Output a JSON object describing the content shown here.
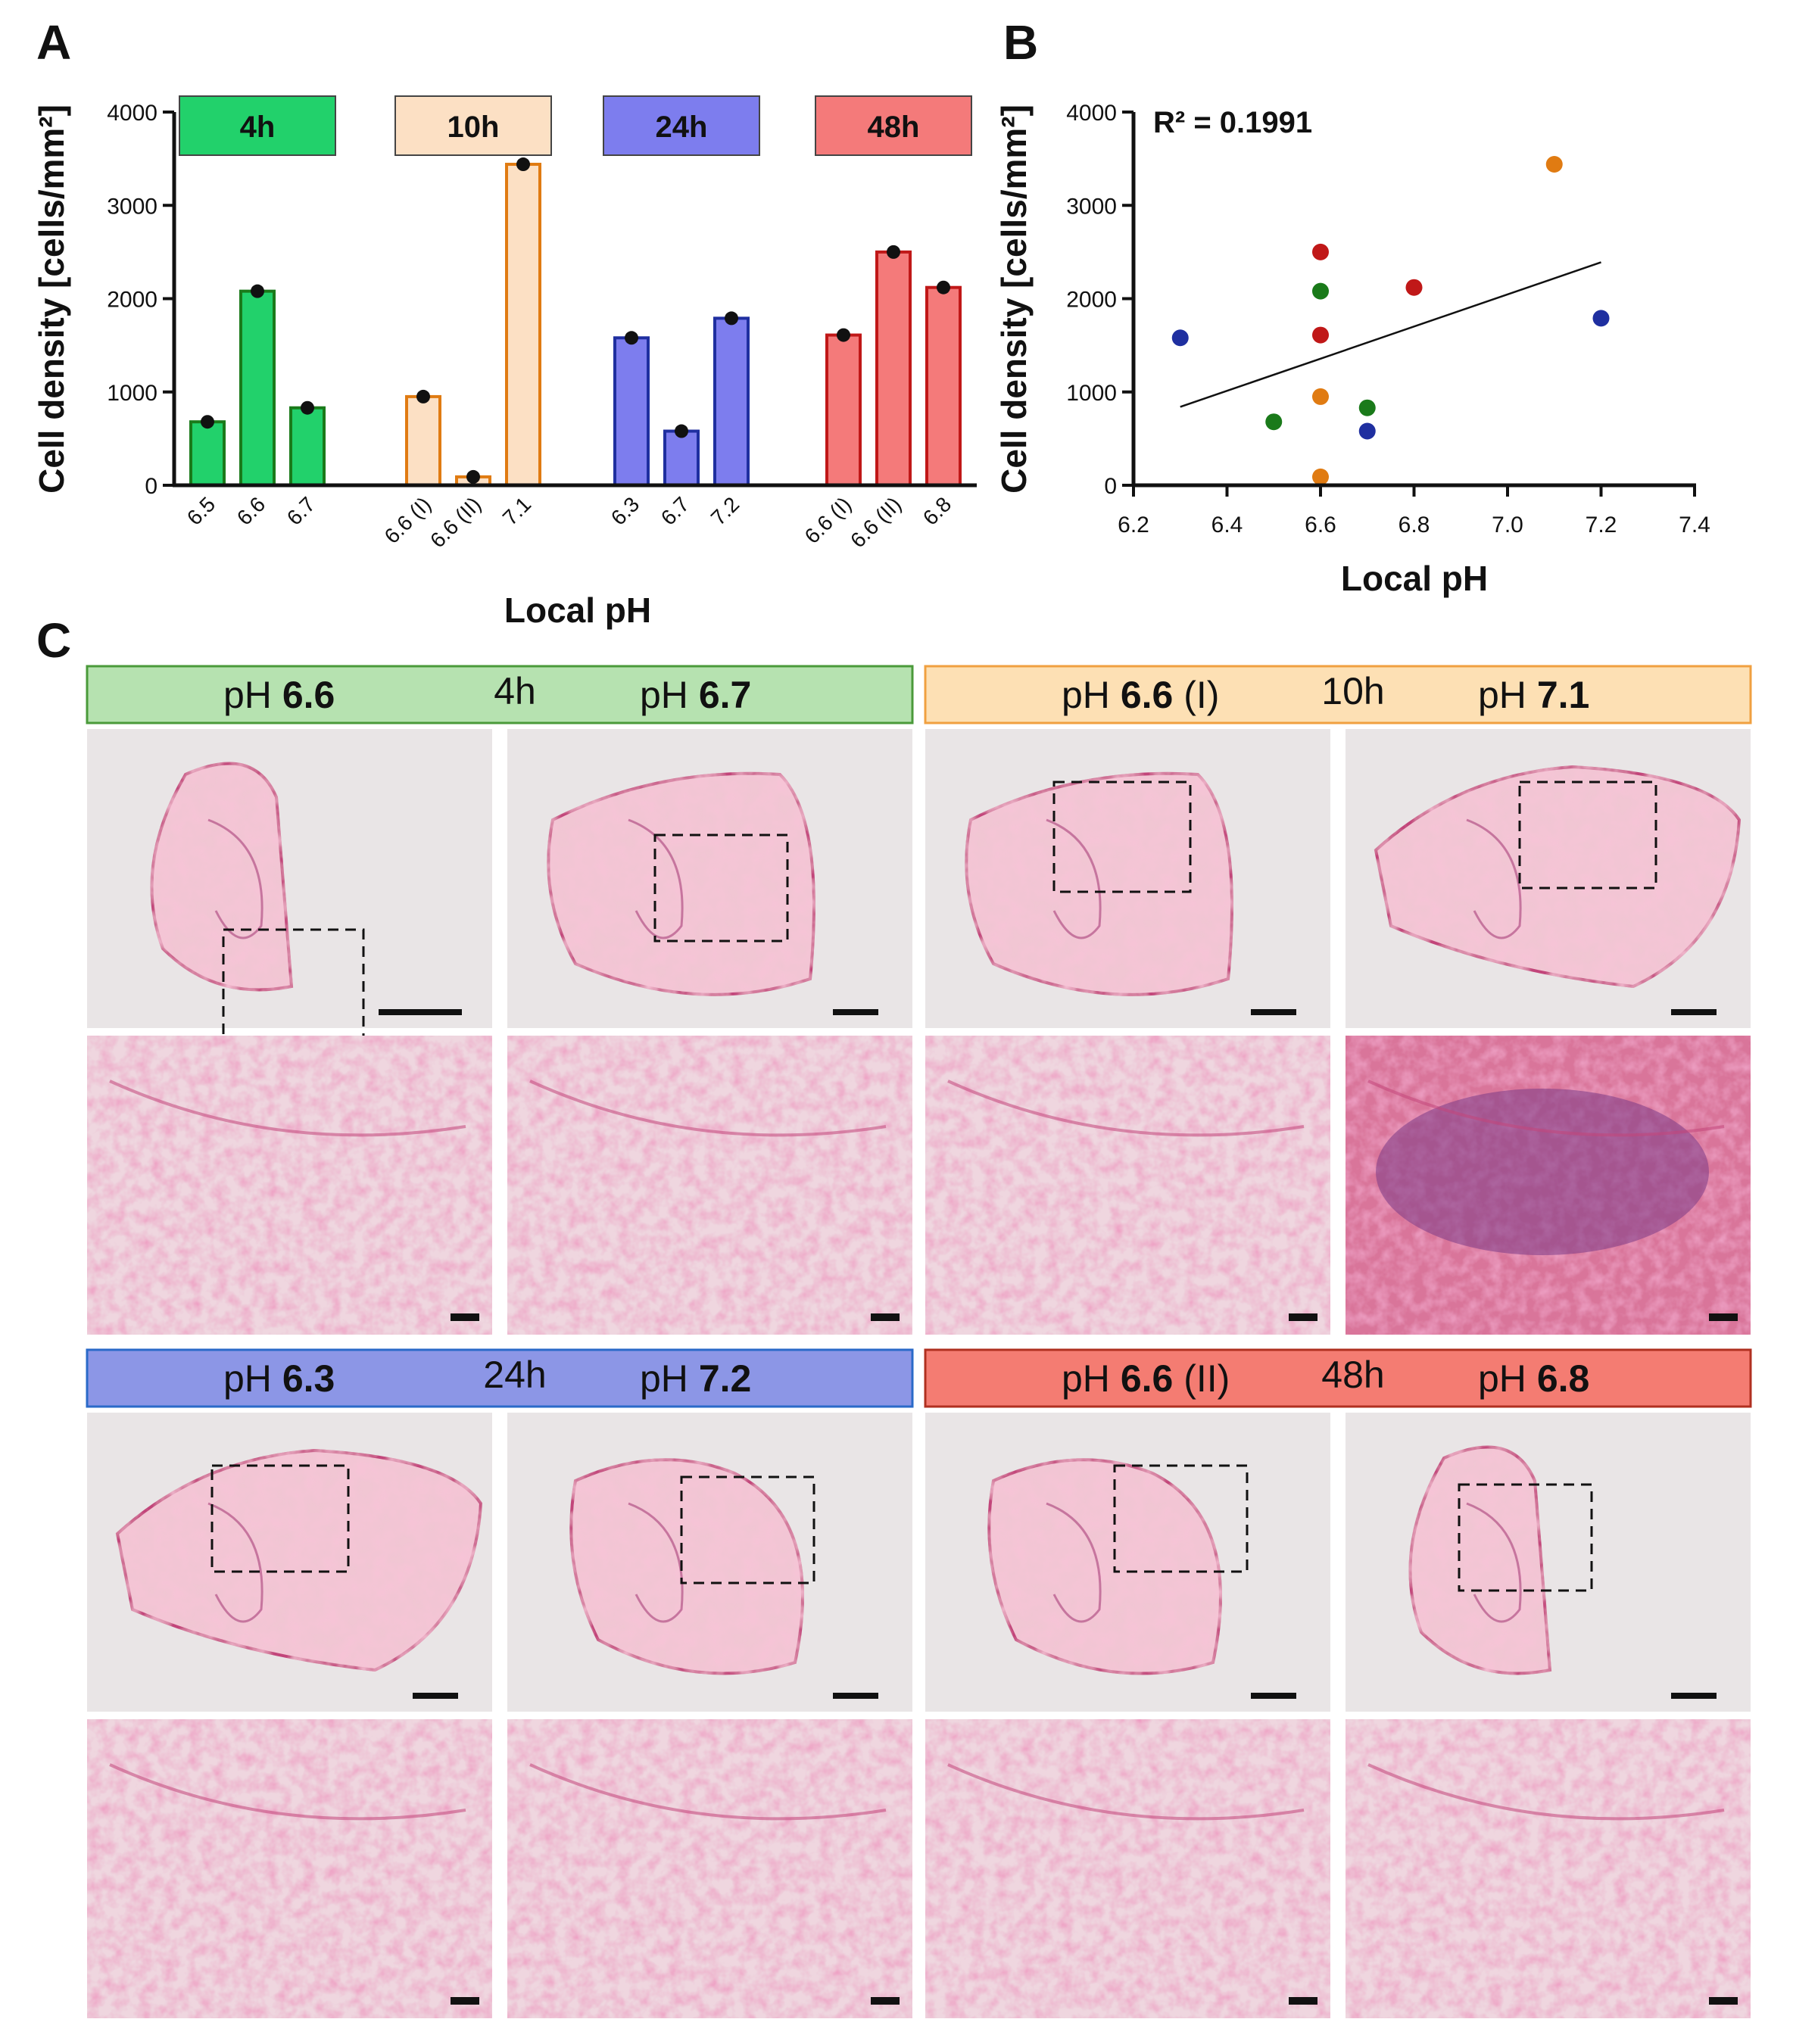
{
  "panel_labels": {
    "a": "A",
    "b": "B",
    "c": "C"
  },
  "colors": {
    "4h_fill": "#22d16b",
    "4h_dot": "#1a7a1a",
    "10h_fill": "#fce0c4",
    "10h_edge": "#e07b12",
    "10h_dot": "#e07b12",
    "24h_fill": "#7d7dee",
    "24h_dot": "#1f2fa0",
    "48h_fill": "#f47a7a",
    "48h_dot": "#c01818"
  },
  "chart_data": [
    {
      "type": "bar",
      "panel": "A",
      "ylabel": "Cell density [cells/mm²]",
      "xlabel": "Local pH",
      "ylim": [
        0,
        4000
      ],
      "yticks": [
        "0",
        "1000",
        "2000",
        "3000",
        "4000"
      ],
      "groups": [
        {
          "name": "4h",
          "categories": [
            "6.5",
            "6.6",
            "6.7"
          ],
          "values": [
            680,
            2080,
            830
          ]
        },
        {
          "name": "10h",
          "categories": [
            "6.6 (I)",
            "6.6 (II)",
            "7.1"
          ],
          "values": [
            950,
            90,
            3440
          ]
        },
        {
          "name": "24h",
          "categories": [
            "6.3",
            "6.7",
            "7.2"
          ],
          "values": [
            1580,
            580,
            1790
          ]
        },
        {
          "name": "48h",
          "categories": [
            "6.6 (I)",
            "6.6 (II)",
            "6.8"
          ],
          "values": [
            1610,
            2500,
            2120
          ]
        }
      ]
    },
    {
      "type": "scatter",
      "panel": "B",
      "ylabel": "Cell density [cells/mm²]",
      "xlabel": "Local pH",
      "xlim": [
        6.2,
        7.4
      ],
      "ylim": [
        0,
        4000
      ],
      "xticks": [
        "6.2",
        "6.4",
        "6.6",
        "6.8",
        "7.0",
        "7.2",
        "7.4"
      ],
      "yticks": [
        "0",
        "1000",
        "2000",
        "3000",
        "4000"
      ],
      "annotation": "R² = 0.1991",
      "trendline": {
        "x": [
          6.3,
          7.2
        ],
        "y": [
          840,
          2390
        ]
      },
      "series": [
        {
          "name": "4h",
          "x": [
            6.5,
            6.6,
            6.7
          ],
          "y": [
            680,
            2080,
            830
          ]
        },
        {
          "name": "10h",
          "x": [
            6.6,
            6.6,
            7.1
          ],
          "y": [
            950,
            90,
            3440
          ]
        },
        {
          "name": "24h",
          "x": [
            6.3,
            6.7,
            7.2
          ],
          "y": [
            1580,
            580,
            1790
          ]
        },
        {
          "name": "48h",
          "x": [
            6.6,
            6.6,
            6.8
          ],
          "y": [
            1610,
            2500,
            2120
          ]
        }
      ]
    }
  ],
  "panel_c": [
    {
      "time": "4h",
      "left_prefix": "pH ",
      "left_bold": "6.6",
      "left_suffix": "",
      "right_prefix": "pH ",
      "right_bold": "6.7",
      "header_fill": "#b6e2b0",
      "header_edge": "#4a9a3a"
    },
    {
      "time": "10h",
      "left_prefix": "pH ",
      "left_bold": "6.6",
      "left_suffix": " (I)",
      "right_prefix": "pH ",
      "right_bold": "7.1",
      "header_fill": "#fde0b4",
      "header_edge": "#f0a040"
    },
    {
      "time": "24h",
      "left_prefix": "pH ",
      "left_bold": "6.3",
      "left_suffix": "",
      "right_prefix": "pH ",
      "right_bold": "7.2",
      "header_fill": "#8c96e6",
      "header_edge": "#2a6ac8"
    },
    {
      "time": "48h",
      "left_prefix": "pH ",
      "left_bold": "6.6",
      "left_suffix": " (II)",
      "right_prefix": "pH ",
      "right_bold": "6.8",
      "header_fill": "#f47c72",
      "header_edge": "#b03020"
    }
  ]
}
